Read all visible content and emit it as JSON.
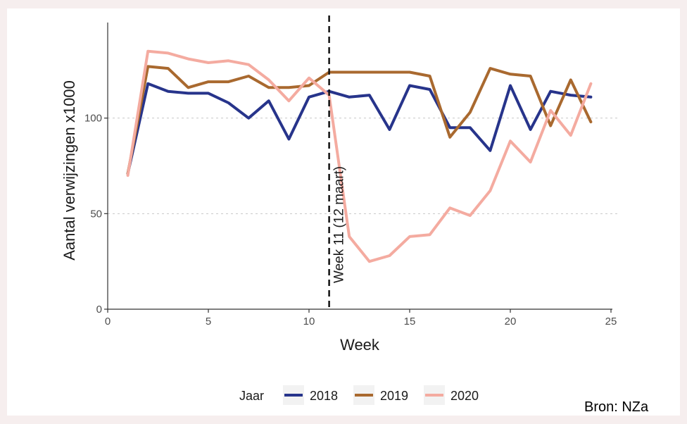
{
  "chart_data": {
    "type": "line",
    "xlabel": "Week",
    "ylabel": "Aantal verwijzingen x1000",
    "xlim": [
      0,
      25
    ],
    "ylim": [
      0,
      150
    ],
    "x_ticks": [
      0,
      5,
      10,
      15,
      20,
      25
    ],
    "x_tick_labels": [
      "0",
      "5",
      "10",
      "15",
      "20",
      "25"
    ],
    "y_ticks": [
      0,
      50,
      100
    ],
    "y_tick_labels": [
      "0",
      "50",
      "100"
    ],
    "grid": "horizontal dashed at 50 and 100",
    "x": [
      1,
      2,
      3,
      4,
      5,
      6,
      7,
      8,
      9,
      10,
      11,
      12,
      13,
      14,
      15,
      16,
      17,
      18,
      19,
      20,
      21,
      22,
      23,
      24
    ],
    "series": [
      {
        "name": "2018",
        "color": "#27348b",
        "values": [
          71,
          118,
          114,
          113,
          113,
          108,
          100,
          109,
          89,
          111,
          114,
          111,
          112,
          94,
          117,
          115,
          95,
          95,
          83,
          117,
          94,
          114,
          112,
          111
        ]
      },
      {
        "name": "2019",
        "color": "#a9692f",
        "values": [
          71,
          127,
          126,
          116,
          119,
          119,
          122,
          116,
          116,
          117,
          124,
          124,
          124,
          124,
          124,
          122,
          90,
          103,
          126,
          123,
          122,
          96,
          120,
          98
        ]
      },
      {
        "name": "2020",
        "color": "#f4aba0",
        "values": [
          70,
          135,
          134,
          131,
          129,
          130,
          128,
          120,
          109,
          121,
          112,
          38,
          25,
          28,
          38,
          39,
          53,
          49,
          62,
          88,
          77,
          104,
          91,
          118
        ]
      }
    ],
    "annotations": [
      {
        "x": 11,
        "text": "Week 11 (12 maart)",
        "style": "dashed vertical line"
      }
    ],
    "legend": {
      "title": "Jaar",
      "entries": [
        "2018",
        "2019",
        "2020"
      ],
      "position": "bottom"
    },
    "source": "Bron: NZa"
  }
}
